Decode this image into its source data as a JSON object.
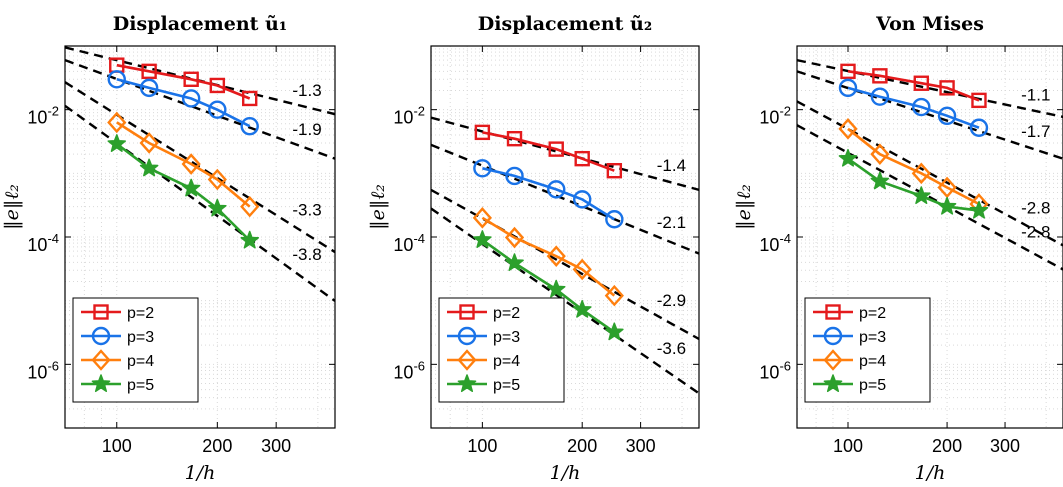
{
  "chart_data": [
    {
      "type": "line",
      "title": "Displacement ũ₁",
      "xlabel": "1/h",
      "ylabel": "‖e‖ℓ₂",
      "xscale": "log",
      "yscale": "log",
      "xlim": [
        70,
        450
      ],
      "ylim": [
        1e-07,
        0.1
      ],
      "xticks": [
        "100",
        "200",
        "300"
      ],
      "yticks": [
        "10^-2",
        "10^-4",
        "10^-6"
      ],
      "grid": true,
      "legend": "bottom-left",
      "series": [
        {
          "name": "p=2",
          "color": "#e41a1c",
          "marker": "square",
          "x": [
            100,
            125,
            167,
            200,
            250
          ],
          "y": [
            0.05,
            0.04,
            0.03,
            0.024,
            0.015
          ]
        },
        {
          "name": "p=3",
          "color": "#1a73e8",
          "marker": "circle",
          "x": [
            100,
            125,
            167,
            200,
            250
          ],
          "y": [
            0.03,
            0.022,
            0.015,
            0.01,
            0.0055
          ]
        },
        {
          "name": "p=4",
          "color": "#ff7f0e",
          "marker": "diamond",
          "x": [
            100,
            125,
            167,
            200,
            250
          ],
          "y": [
            0.0063,
            0.003,
            0.0014,
            0.0008,
            0.0003
          ]
        },
        {
          "name": "p=5",
          "color": "#2ca02c",
          "marker": "star",
          "x": [
            100,
            125,
            167,
            200,
            250
          ],
          "y": [
            0.0029,
            0.0012,
            0.00058,
            0.00028,
            8.8e-05
          ]
        }
      ],
      "reference_lines": [
        {
          "label": "-1.3",
          "x0": 70,
          "y0": 0.095,
          "x1": 450,
          "y1": 0.0085
        },
        {
          "label": "-1.9",
          "x0": 70,
          "y0": 0.06,
          "x1": 450,
          "y1": 0.0017
        },
        {
          "label": "-3.3",
          "x0": 70,
          "y0": 0.027,
          "x1": 450,
          "y1": 5.8e-05
        },
        {
          "label": "-3.8",
          "x0": 70,
          "y0": 0.0115,
          "x1": 450,
          "y1": 9.9e-06
        }
      ]
    },
    {
      "type": "line",
      "title": "Displacement ũ₂",
      "xlabel": "1/h",
      "ylabel": "‖e‖ℓ₂",
      "xscale": "log",
      "yscale": "log",
      "xlim": [
        70,
        450
      ],
      "ylim": [
        1e-07,
        0.1
      ],
      "xticks": [
        "100",
        "200",
        "300"
      ],
      "yticks": [
        "10^-2",
        "10^-4",
        "10^-6"
      ],
      "grid": true,
      "legend": "bottom-left",
      "series": [
        {
          "name": "p=2",
          "color": "#e41a1c",
          "marker": "square",
          "x": [
            100,
            125,
            167,
            200,
            250
          ],
          "y": [
            0.0044,
            0.0035,
            0.0024,
            0.0017,
            0.0011
          ]
        },
        {
          "name": "p=3",
          "color": "#1a73e8",
          "marker": "circle",
          "x": [
            100,
            125,
            167,
            200,
            250
          ],
          "y": [
            0.0012,
            0.00091,
            0.00056,
            0.00039,
            0.00019
          ]
        },
        {
          "name": "p=4",
          "color": "#ff7f0e",
          "marker": "diamond",
          "x": [
            100,
            125,
            167,
            200,
            250
          ],
          "y": [
            0.0002,
            9.8e-05,
            5e-05,
            3.1e-05,
            1.2e-05
          ]
        },
        {
          "name": "p=5",
          "color": "#2ca02c",
          "marker": "star",
          "x": [
            100,
            125,
            167,
            200,
            250
          ],
          "y": [
            9e-05,
            3.9e-05,
            1.5e-05,
            7.2e-06,
            3.2e-06
          ]
        }
      ],
      "reference_lines": [
        {
          "label": "-1.4",
          "x0": 70,
          "y0": 0.0075,
          "x1": 450,
          "y1": 0.00055
        },
        {
          "label": "-2.1",
          "x0": 70,
          "y0": 0.0028,
          "x1": 450,
          "y1": 5.5e-05
        },
        {
          "label": "-2.9",
          "x0": 70,
          "y0": 0.00055,
          "x1": 450,
          "y1": 2.5e-06
        },
        {
          "label": "-3.6",
          "x0": 70,
          "y0": 0.00028,
          "x1": 450,
          "y1": 3.5e-07
        }
      ]
    },
    {
      "type": "line",
      "title": "Von Mises",
      "xlabel": "1/h",
      "ylabel": "‖e‖ℓ₂",
      "xscale": "log",
      "yscale": "log",
      "xlim": [
        70,
        450
      ],
      "ylim": [
        1e-07,
        0.1
      ],
      "xticks": [
        "100",
        "200",
        "300"
      ],
      "yticks": [
        "10^-2",
        "10^-4",
        "10^-6"
      ],
      "grid": true,
      "legend": "bottom-left",
      "series": [
        {
          "name": "p=2",
          "color": "#e41a1c",
          "marker": "square",
          "x": [
            100,
            125,
            167,
            200,
            250
          ],
          "y": [
            0.04,
            0.034,
            0.026,
            0.022,
            0.014
          ]
        },
        {
          "name": "p=3",
          "color": "#1a73e8",
          "marker": "circle",
          "x": [
            100,
            125,
            167,
            200,
            250
          ],
          "y": [
            0.022,
            0.016,
            0.011,
            0.008,
            0.0052
          ]
        },
        {
          "name": "p=4",
          "color": "#ff7f0e",
          "marker": "diamond",
          "x": [
            100,
            125,
            167,
            200,
            250
          ],
          "y": [
            0.005,
            0.002,
            0.001,
            0.0006,
            0.00033
          ]
        },
        {
          "name": "p=5",
          "color": "#2ca02c",
          "marker": "star",
          "x": [
            100,
            125,
            167,
            200,
            250
          ],
          "y": [
            0.0017,
            0.00075,
            0.00044,
            0.0003,
            0.00026
          ]
        }
      ],
      "reference_lines": [
        {
          "label": "-1.1",
          "x0": 70,
          "y0": 0.06,
          "x1": 450,
          "y1": 0.0077
        },
        {
          "label": "-1.7",
          "x0": 70,
          "y0": 0.04,
          "x1": 450,
          "y1": 0.0017
        },
        {
          "label": "-2.8",
          "x0": 70,
          "y0": 0.0135,
          "x1": 450,
          "y1": 7.4e-05
        },
        {
          "label": "-2.8",
          "x0": 70,
          "y0": 0.0057,
          "x1": 450,
          "y1": 3.1e-05
        }
      ]
    }
  ]
}
